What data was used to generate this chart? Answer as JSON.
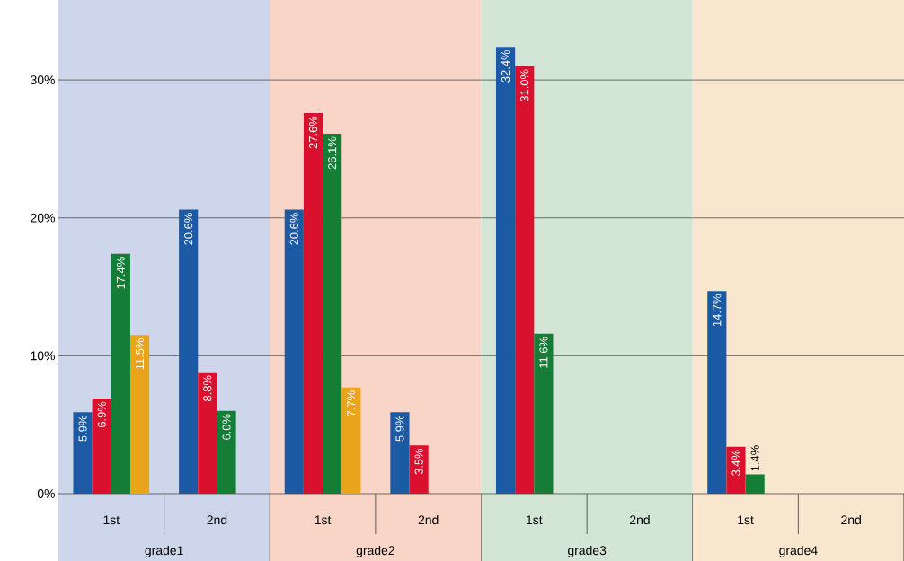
{
  "chart_data": [
    {
      "type": "bar",
      "xlabel": "grade1",
      "categories": [
        "1st",
        "2nd"
      ],
      "series": [
        {
          "color": "#1d5aa6",
          "values": [
            5.9,
            20.6
          ],
          "value_labels": [
            "5.9%",
            "20.6%"
          ]
        },
        {
          "color": "#d9102e",
          "values": [
            6.9,
            8.8
          ],
          "value_labels": [
            "6.9%",
            "8.8%"
          ]
        },
        {
          "color": "#147d36",
          "values": [
            17.4,
            6.0
          ],
          "value_labels": [
            "17.4%",
            "6.0%"
          ]
        },
        {
          "color": "#e9a41c",
          "values": [
            11.5,
            null
          ],
          "value_labels": [
            "11.5%",
            null
          ]
        }
      ],
      "ylim": [
        0,
        35.8
      ],
      "yticks": [
        {
          "value": 0,
          "label": "0%"
        },
        {
          "value": 10,
          "label": "10%"
        },
        {
          "value": 20,
          "label": "20%"
        },
        {
          "value": 30,
          "label": "30%"
        }
      ],
      "grid": "y",
      "bands": [
        {
          "axis": "x",
          "from": "1st",
          "to": "2nd",
          "color": "#cdd6ea"
        }
      ]
    },
    {
      "type": "bar",
      "xlabel": "grade2",
      "categories": [
        "1st",
        "2nd"
      ],
      "series": [
        {
          "color": "#1d5aa6",
          "values": [
            20.6,
            5.9
          ],
          "value_labels": [
            "20.6%",
            "5.9%"
          ]
        },
        {
          "color": "#d9102e",
          "values": [
            27.6,
            3.5
          ],
          "value_labels": [
            "27.6%",
            "3.5%"
          ]
        },
        {
          "color": "#147d36",
          "values": [
            26.1,
            null
          ],
          "value_labels": [
            "26.1%",
            null
          ]
        },
        {
          "color": "#e9a41c",
          "values": [
            7.7,
            null
          ],
          "value_labels": [
            "7.7%",
            null
          ]
        }
      ],
      "ylim": [
        0,
        35.8
      ],
      "yticks": [
        0,
        10,
        20,
        30
      ],
      "grid": "y",
      "tick_labels": "x",
      "bands": [
        {
          "axis": "x",
          "from": "1st",
          "to": "2nd",
          "color": "#f8d5c6"
        }
      ]
    },
    {
      "type": "bar",
      "xlabel": "grade3",
      "categories": [
        "1st",
        "2nd"
      ],
      "series": [
        {
          "color": "#1d5aa6",
          "values": [
            32.4,
            null
          ],
          "value_labels": [
            "32.4%",
            null
          ]
        },
        {
          "color": "#d9102e",
          "values": [
            31.0,
            null
          ],
          "value_labels": [
            "31.0%",
            null
          ]
        },
        {
          "color": "#147d36",
          "values": [
            11.6,
            null
          ],
          "value_labels": [
            "11.6%",
            null
          ]
        },
        {
          "color": "#e9a41c",
          "values": [
            null,
            null
          ]
        }
      ],
      "ylim": [
        0,
        35.8
      ],
      "yticks": [
        0,
        10,
        20,
        30
      ],
      "grid": "y",
      "tick_labels": "x",
      "bands": [
        {
          "axis": "x",
          "from": "1st",
          "to": "2nd",
          "color": "#d3e6d5"
        }
      ]
    },
    {
      "type": "bar",
      "xlabel": "grade4",
      "categories": [
        "1st",
        "2nd"
      ],
      "series": [
        {
          "color": "#1d5aa6",
          "values": [
            14.7,
            null
          ],
          "value_labels": [
            "14.7%",
            null
          ]
        },
        {
          "color": "#d9102e",
          "values": [
            3.4,
            null
          ],
          "value_labels": [
            "3.4%",
            null
          ]
        },
        {
          "color": "#147d36",
          "values": [
            1.4,
            null
          ],
          "value_labels": [
            "1.4%",
            null
          ]
        },
        {
          "color": "#e9a41c",
          "values": [
            null,
            null
          ]
        }
      ],
      "ylim": [
        0,
        35.8
      ],
      "yticks": [
        0,
        10,
        20,
        30
      ],
      "grid": "y",
      "tick_labels": "x",
      "bands": [
        {
          "axis": "x",
          "from": "1st",
          "to": "2nd",
          "color": "#f9e6cf"
        }
      ]
    }
  ]
}
